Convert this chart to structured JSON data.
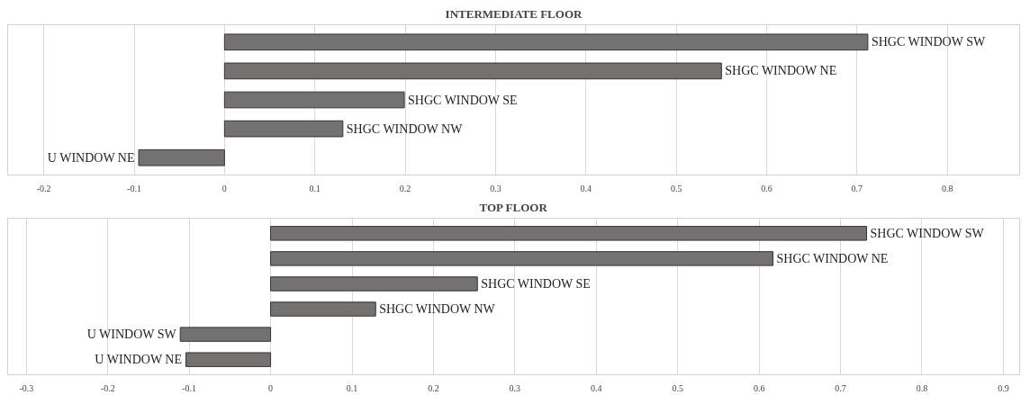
{
  "chart_data": [
    {
      "type": "bar",
      "orientation": "horizontal",
      "title": "INTERMEDIATE FLOOR",
      "categories": [
        "SHGC WINDOW SW",
        "SHGC WINDOW NE",
        "SHGC WINDOW SE",
        "SHGC WINDOW NW",
        "U WINDOW NE"
      ],
      "values": [
        0.712,
        0.55,
        0.199,
        0.131,
        -0.095
      ],
      "color": "#767171",
      "xlim": [
        -0.24,
        0.88
      ],
      "xticks": [
        -0.2,
        -0.1,
        0,
        0.1,
        0.2,
        0.3,
        0.4,
        0.5,
        0.6,
        0.7,
        0.8
      ],
      "grid": "x",
      "tick_labels": "x"
    },
    {
      "type": "bar",
      "orientation": "horizontal",
      "title": "TOP FLOOR",
      "categories": [
        "SHGC WINDOW SW",
        "SHGC WINDOW NE",
        "SHGC WINDOW SE",
        "SHGC WINDOW NW",
        "U WINDOW SW",
        "U WINDOW NE"
      ],
      "values": [
        0.732,
        0.617,
        0.254,
        0.129,
        -0.111,
        -0.104
      ],
      "color": "#767171",
      "xlim": [
        -0.323,
        0.92
      ],
      "xticks": [
        -0.3,
        -0.2,
        -0.1,
        0,
        0.1,
        0.2,
        0.3,
        0.4,
        0.5,
        0.6,
        0.7,
        0.8,
        0.9
      ],
      "grid": "x",
      "tick_labels": "x"
    }
  ]
}
